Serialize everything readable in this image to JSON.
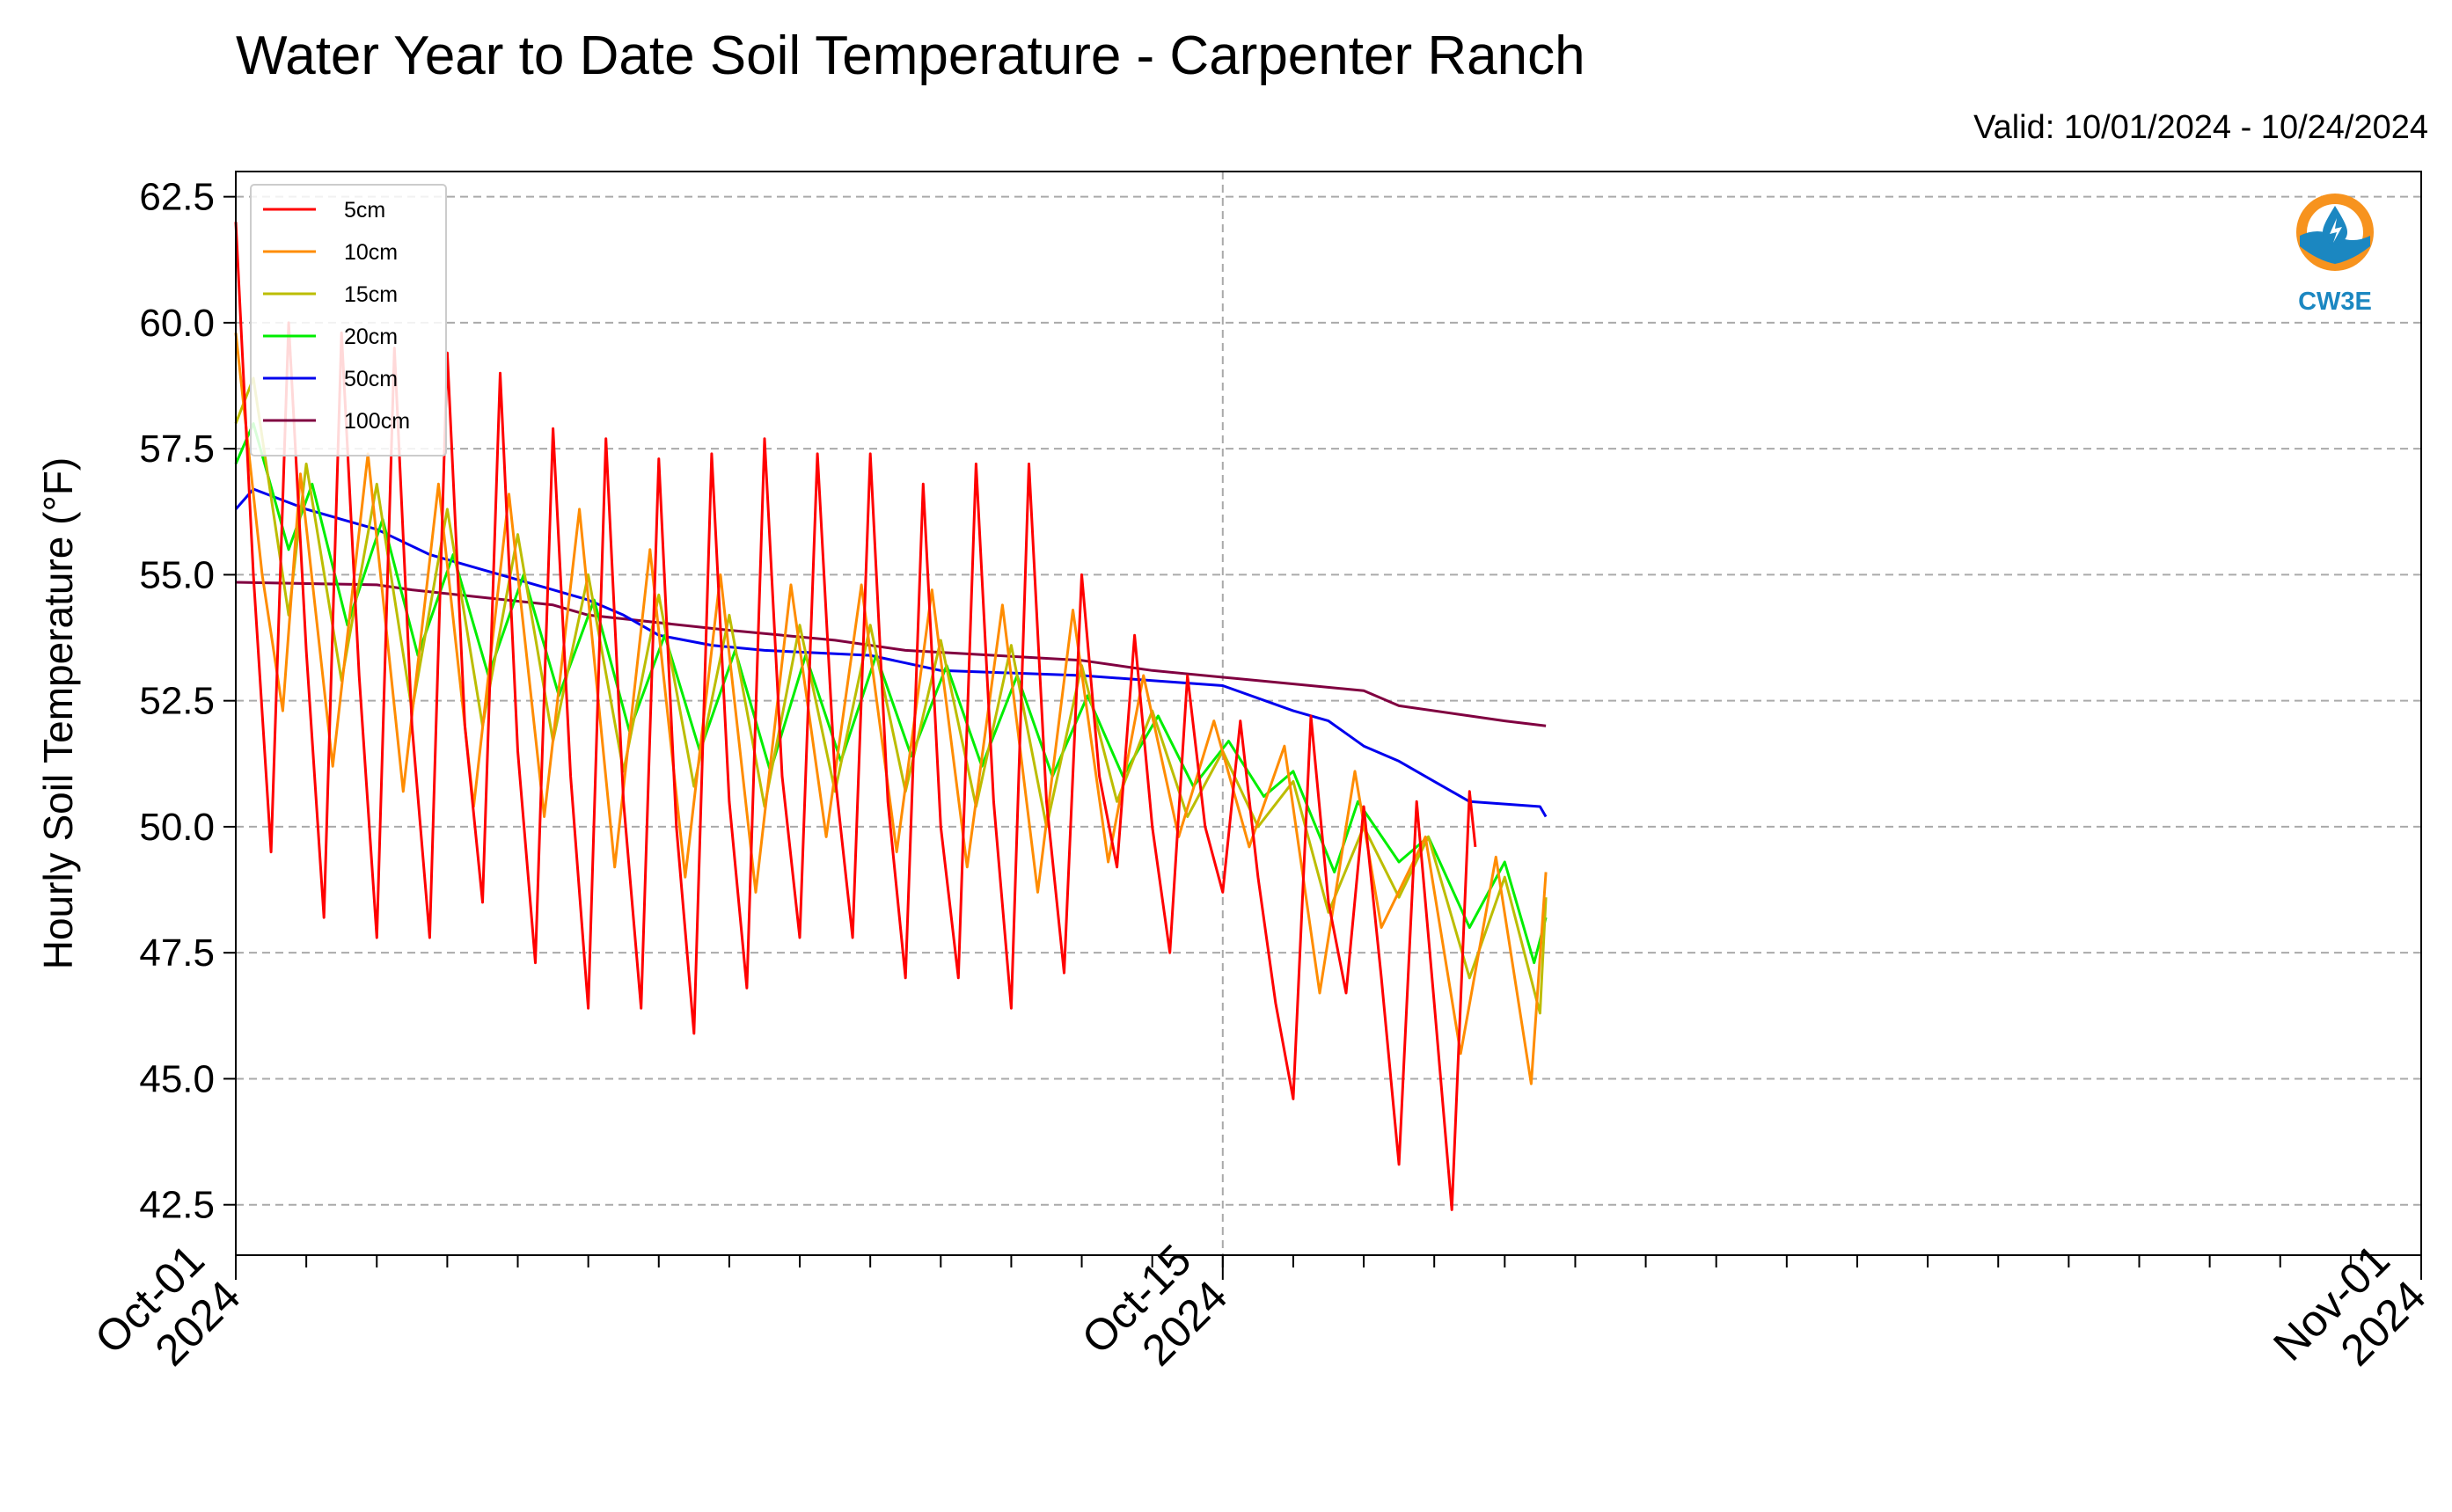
{
  "title": "Water Year to Date Soil Temperature - Carpenter Ranch",
  "valid": "Valid: 10/01/2024 - 10/24/2024",
  "logo": {
    "text": "CW3E",
    "ring_color": "#f7931e",
    "wave_color": "#1b87c1"
  },
  "chart_data": {
    "type": "line",
    "title": "Water Year to Date Soil Temperature - Carpenter Ranch",
    "xlabel": "",
    "ylabel": "Hourly Soil Temperature (°F)",
    "xlim": [
      "2024-10-01",
      "2024-11-01"
    ],
    "ylim": [
      41.5,
      63.0
    ],
    "yticks": [
      "42.5",
      "45.0",
      "47.5",
      "50.0",
      "52.5",
      "55.0",
      "57.5",
      "60.0",
      "62.5"
    ],
    "xticks": [
      {
        "date": "2024-10-01",
        "label": [
          "Oct-01",
          "2024"
        ]
      },
      {
        "date": "2024-10-15",
        "label": [
          "Oct-15",
          "2024"
        ]
      },
      {
        "date": "2024-11-01",
        "label": [
          "Nov-01",
          "2024"
        ]
      }
    ],
    "grid": true,
    "legend_position": "top-left",
    "series": [
      {
        "name": "5cm",
        "color": "#ff0000",
        "points": [
          [
            "2024-10-01T00:00",
            62.0
          ],
          [
            "2024-10-01T06:00",
            55.0
          ],
          [
            "2024-10-01T12:00",
            49.5
          ],
          [
            "2024-10-01T18:00",
            60.0
          ],
          [
            "2024-10-02T00:00",
            53.5
          ],
          [
            "2024-10-02T06:00",
            48.2
          ],
          [
            "2024-10-02T12:00",
            59.8
          ],
          [
            "2024-10-02T18:00",
            53.0
          ],
          [
            "2024-10-03T00:00",
            47.8
          ],
          [
            "2024-10-03T06:00",
            59.5
          ],
          [
            "2024-10-03T12:00",
            52.0
          ],
          [
            "2024-10-03T18:00",
            47.8
          ],
          [
            "2024-10-04T00:00",
            59.4
          ],
          [
            "2024-10-04T06:00",
            52.0
          ],
          [
            "2024-10-04T12:00",
            48.5
          ],
          [
            "2024-10-04T18:00",
            59.0
          ],
          [
            "2024-10-05T00:00",
            51.5
          ],
          [
            "2024-10-05T06:00",
            47.3
          ],
          [
            "2024-10-05T12:00",
            57.9
          ],
          [
            "2024-10-05T18:00",
            51.0
          ],
          [
            "2024-10-06T00:00",
            46.4
          ],
          [
            "2024-10-06T06:00",
            57.7
          ],
          [
            "2024-10-06T12:00",
            50.5
          ],
          [
            "2024-10-06T18:00",
            46.4
          ],
          [
            "2024-10-07T00:00",
            57.3
          ],
          [
            "2024-10-07T06:00",
            50.0
          ],
          [
            "2024-10-07T12:00",
            45.9
          ],
          [
            "2024-10-07T18:00",
            57.4
          ],
          [
            "2024-10-08T00:00",
            50.5
          ],
          [
            "2024-10-08T06:00",
            46.8
          ],
          [
            "2024-10-08T12:00",
            57.7
          ],
          [
            "2024-10-08T18:00",
            51.0
          ],
          [
            "2024-10-09T00:00",
            47.8
          ],
          [
            "2024-10-09T06:00",
            57.4
          ],
          [
            "2024-10-09T12:00",
            51.0
          ],
          [
            "2024-10-09T18:00",
            47.8
          ],
          [
            "2024-10-10T00:00",
            57.4
          ],
          [
            "2024-10-10T06:00",
            50.5
          ],
          [
            "2024-10-10T12:00",
            47.0
          ],
          [
            "2024-10-10T18:00",
            56.8
          ],
          [
            "2024-10-11T00:00",
            50.0
          ],
          [
            "2024-10-11T06:00",
            47.0
          ],
          [
            "2024-10-11T12:00",
            57.2
          ],
          [
            "2024-10-11T18:00",
            50.5
          ],
          [
            "2024-10-12T00:00",
            46.4
          ],
          [
            "2024-10-12T06:00",
            57.2
          ],
          [
            "2024-10-12T12:00",
            50.5
          ],
          [
            "2024-10-12T18:00",
            47.1
          ],
          [
            "2024-10-13T00:00",
            55.0
          ],
          [
            "2024-10-13T06:00",
            51.0
          ],
          [
            "2024-10-13T12:00",
            49.2
          ],
          [
            "2024-10-13T18:00",
            53.8
          ],
          [
            "2024-10-14T00:00",
            50.0
          ],
          [
            "2024-10-14T06:00",
            47.5
          ],
          [
            "2024-10-14T12:00",
            53.0
          ],
          [
            "2024-10-14T18:00",
            50.0
          ],
          [
            "2024-10-15T00:00",
            48.7
          ],
          [
            "2024-10-15T06:00",
            52.1
          ],
          [
            "2024-10-15T12:00",
            49.0
          ],
          [
            "2024-10-15T18:00",
            46.5
          ],
          [
            "2024-10-16T00:00",
            44.6
          ],
          [
            "2024-10-16T06:00",
            52.2
          ],
          [
            "2024-10-16T12:00",
            48.5
          ],
          [
            "2024-10-16T18:00",
            46.7
          ],
          [
            "2024-10-17T00:00",
            50.4
          ],
          [
            "2024-10-17T06:00",
            47.0
          ],
          [
            "2024-10-17T12:00",
            43.3
          ],
          [
            "2024-10-17T18:00",
            50.5
          ],
          [
            "2024-10-18T00:00",
            46.5
          ],
          [
            "2024-10-18T06:00",
            42.4
          ],
          [
            "2024-10-18T12:00",
            50.7
          ],
          [
            "2024-10-18T14:00",
            49.6
          ]
        ]
      },
      {
        "name": "10cm",
        "color": "#ff8c00",
        "points": [
          [
            "2024-10-01T00:00",
            59.8
          ],
          [
            "2024-10-01T09:00",
            55.0
          ],
          [
            "2024-10-01T16:00",
            52.3
          ],
          [
            "2024-10-01T22:00",
            57.0
          ],
          [
            "2024-10-02T09:00",
            51.2
          ],
          [
            "2024-10-02T21:00",
            57.4
          ],
          [
            "2024-10-03T09:00",
            50.7
          ],
          [
            "2024-10-03T21:00",
            56.8
          ],
          [
            "2024-10-04T09:00",
            50.4
          ],
          [
            "2024-10-04T21:00",
            56.6
          ],
          [
            "2024-10-05T09:00",
            50.2
          ],
          [
            "2024-10-05T21:00",
            56.3
          ],
          [
            "2024-10-06T09:00",
            49.2
          ],
          [
            "2024-10-06T21:00",
            55.5
          ],
          [
            "2024-10-07T09:00",
            49.0
          ],
          [
            "2024-10-07T21:00",
            55.0
          ],
          [
            "2024-10-08T09:00",
            48.7
          ],
          [
            "2024-10-08T21:00",
            54.8
          ],
          [
            "2024-10-09T09:00",
            49.8
          ],
          [
            "2024-10-09T21:00",
            54.8
          ],
          [
            "2024-10-10T09:00",
            49.5
          ],
          [
            "2024-10-10T21:00",
            54.7
          ],
          [
            "2024-10-11T09:00",
            49.2
          ],
          [
            "2024-10-11T21:00",
            54.4
          ],
          [
            "2024-10-12T09:00",
            48.7
          ],
          [
            "2024-10-12T21:00",
            54.3
          ],
          [
            "2024-10-13T09:00",
            49.3
          ],
          [
            "2024-10-13T21:00",
            53.0
          ],
          [
            "2024-10-14T09:00",
            49.8
          ],
          [
            "2024-10-14T21:00",
            52.1
          ],
          [
            "2024-10-15T09:00",
            49.6
          ],
          [
            "2024-10-15T21:00",
            51.6
          ],
          [
            "2024-10-16T09:00",
            46.7
          ],
          [
            "2024-10-16T21:00",
            51.1
          ],
          [
            "2024-10-17T06:00",
            48.0
          ],
          [
            "2024-10-17T21:00",
            49.8
          ],
          [
            "2024-10-18T09:00",
            45.5
          ],
          [
            "2024-10-18T21:00",
            49.4
          ],
          [
            "2024-10-19T09:00",
            44.9
          ],
          [
            "2024-10-19T14:00",
            49.1
          ]
        ]
      },
      {
        "name": "15cm",
        "color": "#bcbd00",
        "points": [
          [
            "2024-10-01T00:00",
            58.0
          ],
          [
            "2024-10-01T06:00",
            58.9
          ],
          [
            "2024-10-01T18:00",
            54.2
          ],
          [
            "2024-10-02T00:00",
            57.2
          ],
          [
            "2024-10-02T12:00",
            52.9
          ],
          [
            "2024-10-03T00:00",
            56.8
          ],
          [
            "2024-10-03T12:00",
            52.3
          ],
          [
            "2024-10-04T00:00",
            56.3
          ],
          [
            "2024-10-04T12:00",
            52.0
          ],
          [
            "2024-10-05T00:00",
            55.8
          ],
          [
            "2024-10-05T12:00",
            51.7
          ],
          [
            "2024-10-06T00:00",
            55.0
          ],
          [
            "2024-10-06T12:00",
            51.1
          ],
          [
            "2024-10-07T00:00",
            54.6
          ],
          [
            "2024-10-07T12:00",
            50.8
          ],
          [
            "2024-10-08T00:00",
            54.2
          ],
          [
            "2024-10-08T12:00",
            50.4
          ],
          [
            "2024-10-09T00:00",
            54.0
          ],
          [
            "2024-10-09T12:00",
            50.7
          ],
          [
            "2024-10-10T00:00",
            54.0
          ],
          [
            "2024-10-10T12:00",
            50.7
          ],
          [
            "2024-10-11T00:00",
            53.7
          ],
          [
            "2024-10-11T12:00",
            50.4
          ],
          [
            "2024-10-12T00:00",
            53.6
          ],
          [
            "2024-10-12T12:00",
            50.0
          ],
          [
            "2024-10-13T00:00",
            53.2
          ],
          [
            "2024-10-13T12:00",
            50.5
          ],
          [
            "2024-10-14T00:00",
            52.3
          ],
          [
            "2024-10-14T12:00",
            50.2
          ],
          [
            "2024-10-15T00:00",
            51.5
          ],
          [
            "2024-10-15T12:00",
            50.0
          ],
          [
            "2024-10-16T00:00",
            50.9
          ],
          [
            "2024-10-16T12:00",
            48.3
          ],
          [
            "2024-10-17T00:00",
            50.0
          ],
          [
            "2024-10-17T12:00",
            48.6
          ],
          [
            "2024-10-17T22:00",
            49.8
          ],
          [
            "2024-10-18T12:00",
            47.0
          ],
          [
            "2024-10-19T00:00",
            49.0
          ],
          [
            "2024-10-19T12:00",
            46.3
          ],
          [
            "2024-10-19T14:00",
            48.6
          ]
        ]
      },
      {
        "name": "20cm",
        "color": "#00ee00",
        "points": [
          [
            "2024-10-01T00:00",
            57.2
          ],
          [
            "2024-10-01T06:00",
            58.0
          ],
          [
            "2024-10-01T18:00",
            55.5
          ],
          [
            "2024-10-02T02:00",
            56.8
          ],
          [
            "2024-10-02T14:00",
            54.0
          ],
          [
            "2024-10-03T02:00",
            56.1
          ],
          [
            "2024-10-03T14:00",
            53.4
          ],
          [
            "2024-10-04T02:00",
            55.4
          ],
          [
            "2024-10-04T14:00",
            53.0
          ],
          [
            "2024-10-05T02:00",
            55.0
          ],
          [
            "2024-10-05T14:00",
            52.6
          ],
          [
            "2024-10-06T02:00",
            54.5
          ],
          [
            "2024-10-06T14:00",
            51.9
          ],
          [
            "2024-10-07T02:00",
            53.8
          ],
          [
            "2024-10-07T14:00",
            51.5
          ],
          [
            "2024-10-08T02:00",
            53.5
          ],
          [
            "2024-10-08T14:00",
            51.1
          ],
          [
            "2024-10-09T02:00",
            53.4
          ],
          [
            "2024-10-09T14:00",
            51.3
          ],
          [
            "2024-10-10T02:00",
            53.4
          ],
          [
            "2024-10-10T14:00",
            51.4
          ],
          [
            "2024-10-11T02:00",
            53.2
          ],
          [
            "2024-10-11T14:00",
            51.2
          ],
          [
            "2024-10-12T02:00",
            53.0
          ],
          [
            "2024-10-12T14:00",
            51.0
          ],
          [
            "2024-10-13T02:00",
            52.6
          ],
          [
            "2024-10-13T14:00",
            51.0
          ],
          [
            "2024-10-14T02:00",
            52.2
          ],
          [
            "2024-10-14T14:00",
            50.8
          ],
          [
            "2024-10-15T02:00",
            51.7
          ],
          [
            "2024-10-15T14:00",
            50.6
          ],
          [
            "2024-10-16T00:00",
            51.1
          ],
          [
            "2024-10-16T14:00",
            49.1
          ],
          [
            "2024-10-16T22:00",
            50.5
          ],
          [
            "2024-10-17T12:00",
            49.3
          ],
          [
            "2024-10-17T22:00",
            49.8
          ],
          [
            "2024-10-18T12:00",
            48.0
          ],
          [
            "2024-10-19T00:00",
            49.3
          ],
          [
            "2024-10-19T10:00",
            47.3
          ],
          [
            "2024-10-19T14:00",
            48.2
          ]
        ]
      },
      {
        "name": "50cm",
        "color": "#0000ee",
        "points": [
          [
            "2024-10-01T00:00",
            56.3
          ],
          [
            "2024-10-01T06:00",
            56.7
          ],
          [
            "2024-10-02T00:00",
            56.3
          ],
          [
            "2024-10-02T12:00",
            56.1
          ],
          [
            "2024-10-03T00:00",
            55.9
          ],
          [
            "2024-10-03T18:00",
            55.4
          ],
          [
            "2024-10-04T12:00",
            55.1
          ],
          [
            "2024-10-05T00:00",
            54.9
          ],
          [
            "2024-10-05T12:00",
            54.7
          ],
          [
            "2024-10-06T00:00",
            54.5
          ],
          [
            "2024-10-06T12:00",
            54.2
          ],
          [
            "2024-10-07T00:00",
            53.8
          ],
          [
            "2024-10-07T18:00",
            53.6
          ],
          [
            "2024-10-08T12:00",
            53.5
          ],
          [
            "2024-10-10T00:00",
            53.4
          ],
          [
            "2024-10-11T00:00",
            53.1
          ],
          [
            "2024-10-13T00:00",
            53.0
          ],
          [
            "2024-10-14T00:00",
            52.9
          ],
          [
            "2024-10-15T00:00",
            52.8
          ],
          [
            "2024-10-16T00:00",
            52.3
          ],
          [
            "2024-10-16T12:00",
            52.1
          ],
          [
            "2024-10-17T00:00",
            51.6
          ],
          [
            "2024-10-17T12:00",
            51.3
          ],
          [
            "2024-10-18T00:00",
            50.9
          ],
          [
            "2024-10-18T12:00",
            50.5
          ],
          [
            "2024-10-19T12:00",
            50.4
          ],
          [
            "2024-10-19T14:00",
            50.2
          ]
        ]
      },
      {
        "name": "100cm",
        "color": "#800040",
        "points": [
          [
            "2024-10-01T00:00",
            54.85
          ],
          [
            "2024-10-03T00:00",
            54.8
          ],
          [
            "2024-10-03T12:00",
            54.7
          ],
          [
            "2024-10-05T12:00",
            54.4
          ],
          [
            "2024-10-06T00:00",
            54.2
          ],
          [
            "2024-10-08T00:00",
            53.9
          ],
          [
            "2024-10-09T12:00",
            53.7
          ],
          [
            "2024-10-10T12:00",
            53.5
          ],
          [
            "2024-10-13T00:00",
            53.3
          ],
          [
            "2024-10-14T00:00",
            53.1
          ],
          [
            "2024-10-15T12:00",
            52.9
          ],
          [
            "2024-10-17T00:00",
            52.7
          ],
          [
            "2024-10-17T12:00",
            52.4
          ],
          [
            "2024-10-18T12:00",
            52.2
          ],
          [
            "2024-10-19T00:00",
            52.1
          ],
          [
            "2024-10-19T14:00",
            52.0
          ]
        ]
      }
    ]
  }
}
